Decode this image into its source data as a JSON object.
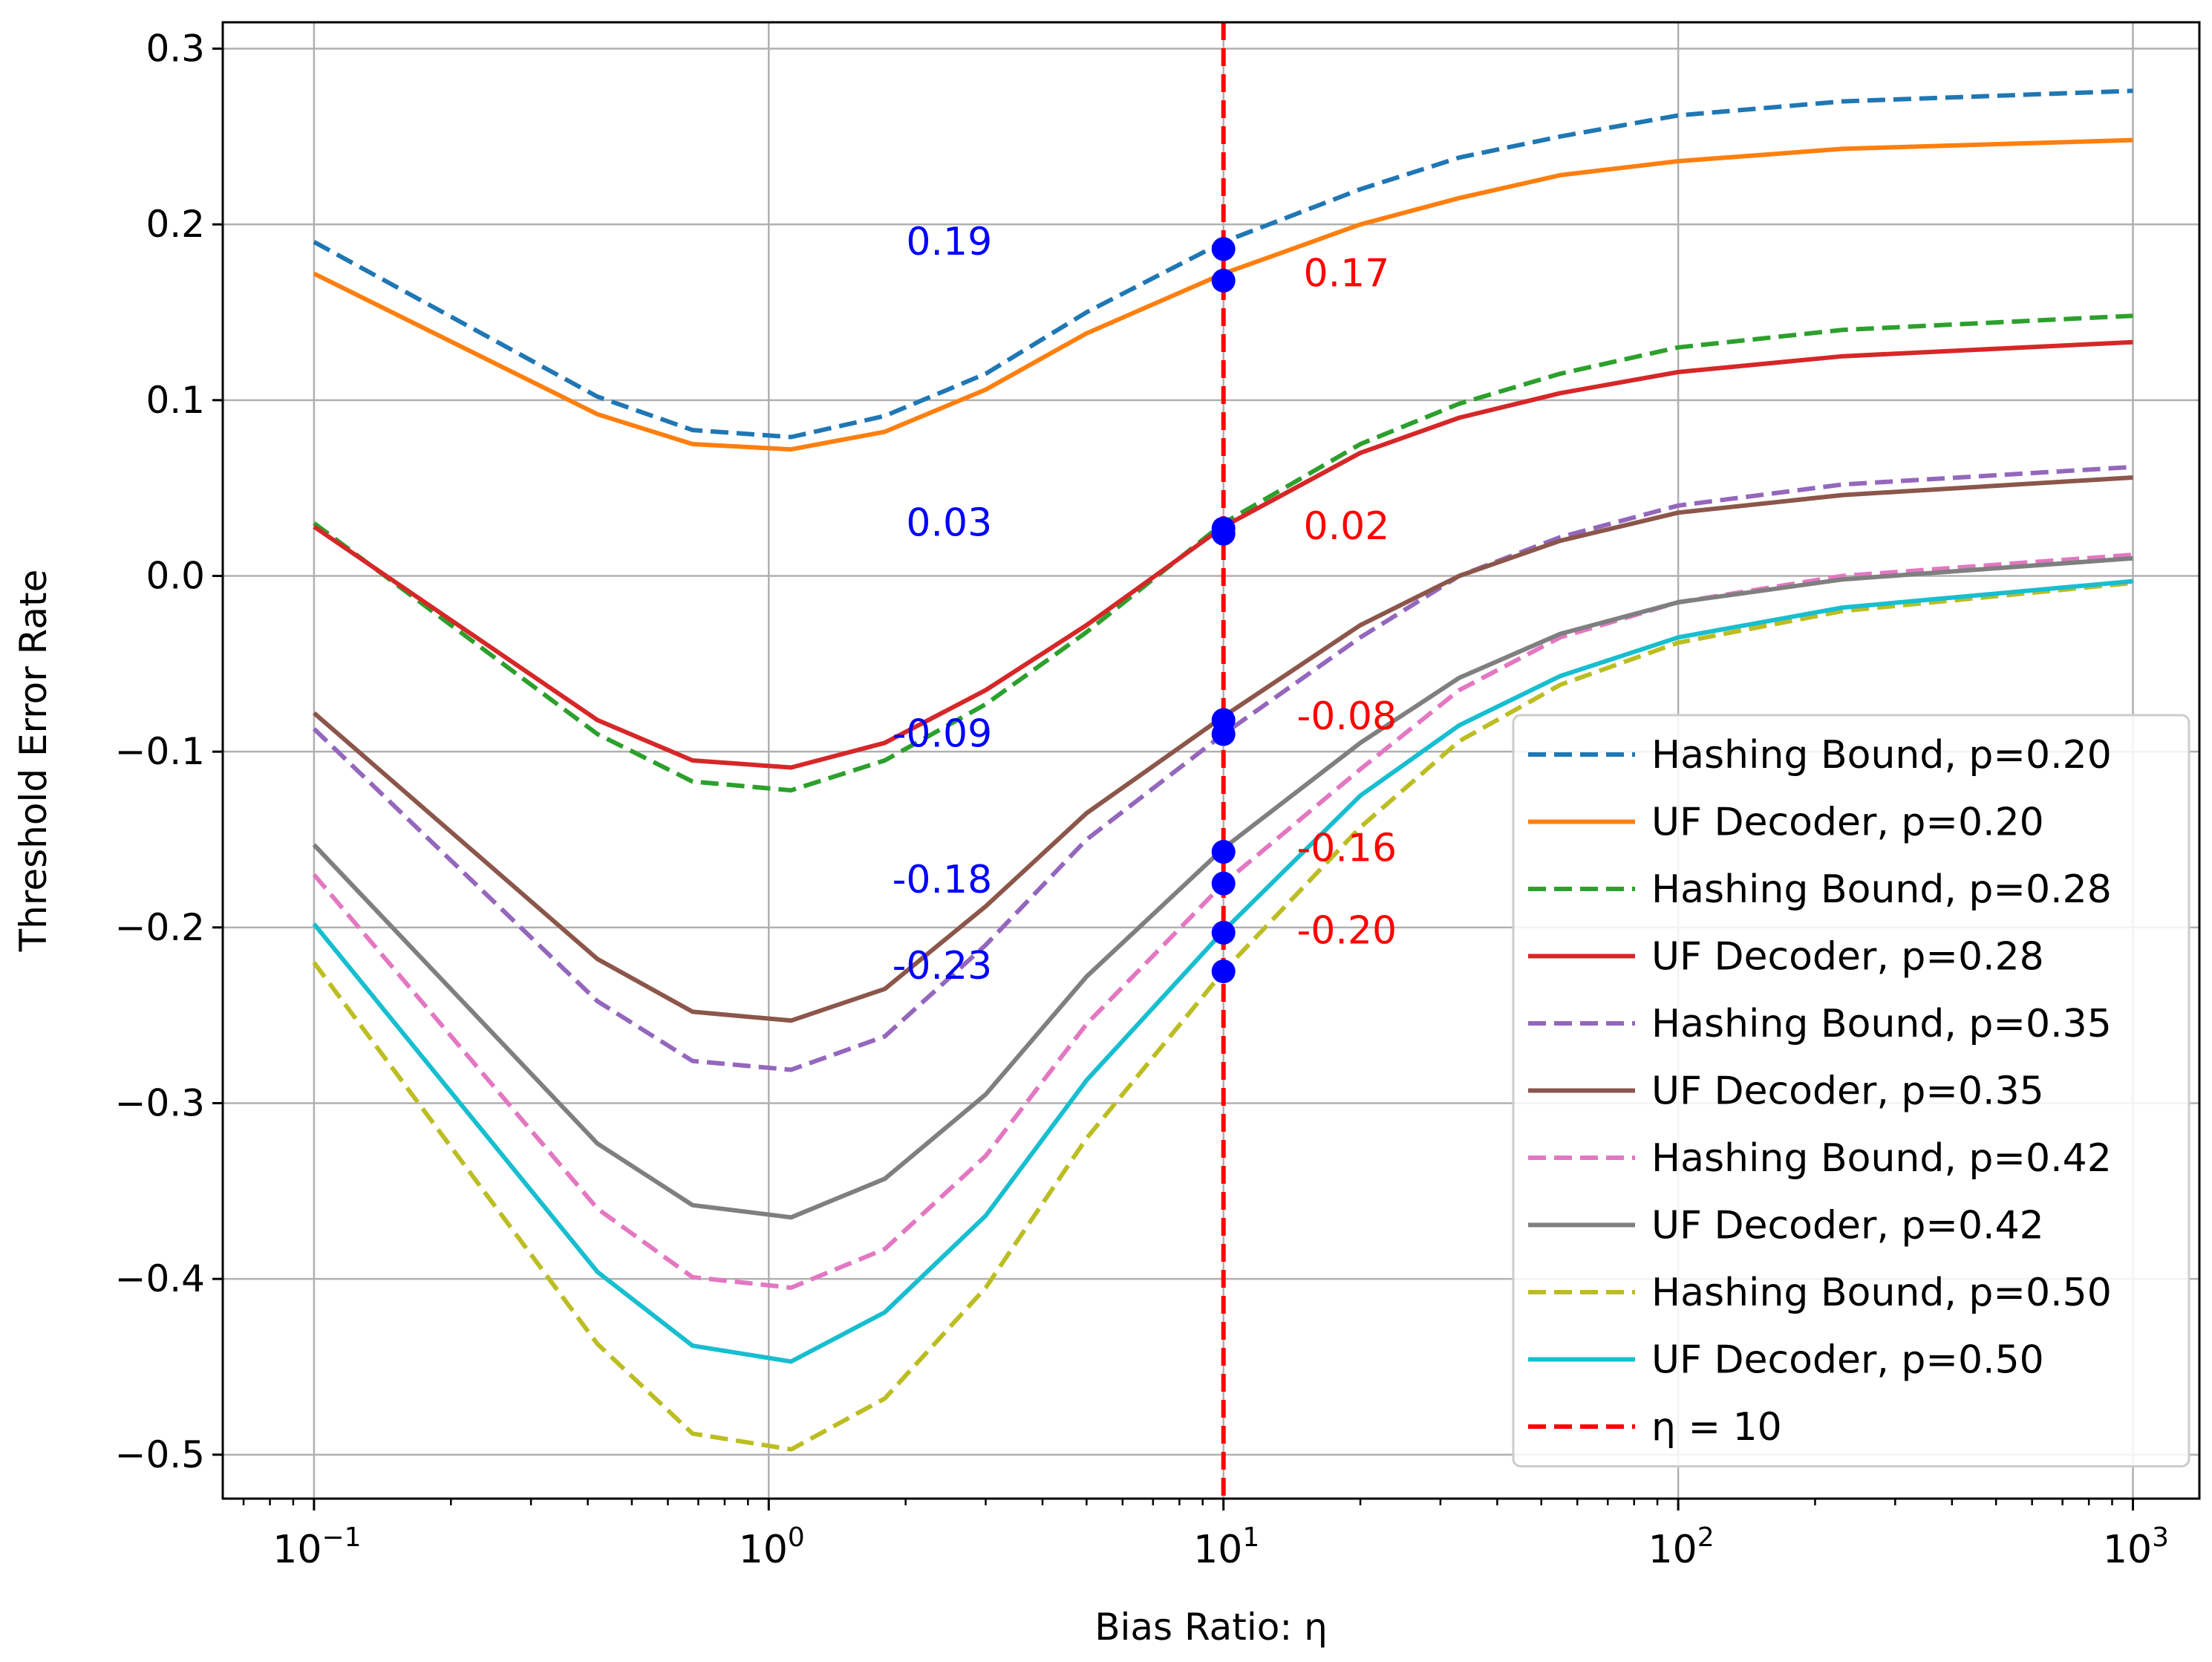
{
  "chart_data": {
    "type": "line",
    "xlabel": "Bias Ratio: η",
    "ylabel": "Threshold Error Rate",
    "xscale": "log",
    "xlim": [
      0.063,
      1400
    ],
    "ylim": [
      -0.525,
      0.315
    ],
    "grid": true,
    "legend_position": "lower-right",
    "x_ticks": [
      {
        "value": 0.1,
        "base": "10",
        "exp": "−1"
      },
      {
        "value": 1,
        "base": "10",
        "exp": "0"
      },
      {
        "value": 10,
        "base": "10",
        "exp": "1"
      },
      {
        "value": 100,
        "base": "10",
        "exp": "2"
      },
      {
        "value": 1000,
        "base": "10",
        "exp": "3"
      }
    ],
    "y_ticks": [
      {
        "value": 0.3,
        "label": "0.3"
      },
      {
        "value": 0.2,
        "label": "0.2"
      },
      {
        "value": 0.1,
        "label": "0.1"
      },
      {
        "value": 0.0,
        "label": "0.0"
      },
      {
        "value": -0.1,
        "label": "−0.1"
      },
      {
        "value": -0.2,
        "label": "−0.2"
      },
      {
        "value": -0.3,
        "label": "−0.3"
      },
      {
        "value": -0.4,
        "label": "−0.4"
      },
      {
        "value": -0.5,
        "label": "−0.5"
      }
    ],
    "x": [
      0.1,
      0.42,
      0.68,
      1.12,
      1.8,
      3.0,
      5.0,
      10,
      20,
      33,
      55,
      100,
      230,
      1000
    ],
    "series": [
      {
        "name": "Hashing Bound, p=0.20",
        "color": "#1f77b4",
        "dashed": true,
        "values": [
          0.19,
          0.102,
          0.083,
          0.079,
          0.091,
          0.115,
          0.15,
          0.19,
          0.22,
          0.238,
          0.25,
          0.262,
          0.27,
          0.276
        ]
      },
      {
        "name": "UF Decoder, p=0.20",
        "color": "#ff7f0e",
        "dashed": false,
        "values": [
          0.172,
          0.092,
          0.075,
          0.072,
          0.082,
          0.106,
          0.138,
          0.172,
          0.2,
          0.215,
          0.228,
          0.236,
          0.243,
          0.248
        ]
      },
      {
        "name": "Hashing Bound, p=0.28",
        "color": "#2ca02c",
        "dashed": true,
        "values": [
          0.03,
          -0.09,
          -0.117,
          -0.122,
          -0.105,
          -0.073,
          -0.032,
          0.03,
          0.075,
          0.098,
          0.115,
          0.13,
          0.14,
          0.148
        ]
      },
      {
        "name": "UF Decoder, p=0.28",
        "color": "#d62728",
        "dashed": false,
        "values": [
          0.028,
          -0.082,
          -0.105,
          -0.109,
          -0.095,
          -0.065,
          -0.028,
          0.028,
          0.07,
          0.09,
          0.104,
          0.116,
          0.125,
          0.133
        ]
      },
      {
        "name": "Hashing Bound, p=0.35",
        "color": "#9467bd",
        "dashed": true,
        "values": [
          -0.087,
          -0.242,
          -0.276,
          -0.281,
          -0.262,
          -0.21,
          -0.15,
          -0.09,
          -0.035,
          0.0,
          0.022,
          0.04,
          0.052,
          0.062
        ]
      },
      {
        "name": "UF Decoder, p=0.35",
        "color": "#8c564b",
        "dashed": false,
        "values": [
          -0.078,
          -0.218,
          -0.248,
          -0.253,
          -0.235,
          -0.188,
          -0.135,
          -0.08,
          -0.028,
          0.0,
          0.02,
          0.036,
          0.046,
          0.056
        ]
      },
      {
        "name": "Hashing Bound, p=0.42",
        "color": "#e377c2",
        "dashed": true,
        "values": [
          -0.17,
          -0.36,
          -0.399,
          -0.405,
          -0.383,
          -0.33,
          -0.255,
          -0.175,
          -0.11,
          -0.065,
          -0.035,
          -0.015,
          0.0,
          0.012
        ]
      },
      {
        "name": "UF Decoder, p=0.42",
        "color": "#7f7f7f",
        "dashed": false,
        "values": [
          -0.153,
          -0.323,
          -0.358,
          -0.365,
          -0.343,
          -0.295,
          -0.228,
          -0.155,
          -0.095,
          -0.058,
          -0.033,
          -0.015,
          -0.002,
          0.01
        ]
      },
      {
        "name": "Hashing Bound, p=0.50",
        "color": "#bcbd22",
        "dashed": true,
        "values": [
          -0.22,
          -0.437,
          -0.488,
          -0.497,
          -0.468,
          -0.405,
          -0.32,
          -0.225,
          -0.143,
          -0.094,
          -0.062,
          -0.038,
          -0.02,
          -0.004
        ]
      },
      {
        "name": "UF Decoder, p=0.50",
        "color": "#17becf",
        "dashed": false,
        "values": [
          -0.198,
          -0.396,
          -0.438,
          -0.447,
          -0.419,
          -0.364,
          -0.287,
          -0.202,
          -0.125,
          -0.085,
          -0.057,
          -0.035,
          -0.018,
          -0.003
        ]
      }
    ],
    "vline": {
      "name": "η = 10",
      "x": 10,
      "color": "#ff0000"
    },
    "markers": {
      "x": 10,
      "color": "#0000ff",
      "values": [
        0.186,
        0.168,
        0.027,
        0.024,
        -0.082,
        -0.09,
        -0.157,
        -0.175,
        -0.203,
        -0.225
      ]
    },
    "annotations": [
      {
        "text": "0.19",
        "color": "#0000ff",
        "x": 3.1,
        "y": 0.19,
        "anchor": "end"
      },
      {
        "text": "0.17",
        "color": "#ff0000",
        "x": 15,
        "y": 0.172,
        "anchor": "start"
      },
      {
        "text": "0.03",
        "color": "#0000ff",
        "x": 3.1,
        "y": 0.03,
        "anchor": "end"
      },
      {
        "text": "0.02",
        "color": "#ff0000",
        "x": 15,
        "y": 0.028,
        "anchor": "start"
      },
      {
        "text": "-0.09",
        "color": "#0000ff",
        "x": 3.1,
        "y": -0.09,
        "anchor": "end"
      },
      {
        "text": "-0.08",
        "color": "#ff0000",
        "x": 14.5,
        "y": -0.08,
        "anchor": "start"
      },
      {
        "text": "-0.18",
        "color": "#0000ff",
        "x": 3.1,
        "y": -0.173,
        "anchor": "end"
      },
      {
        "text": "-0.16",
        "color": "#ff0000",
        "x": 14.5,
        "y": -0.155,
        "anchor": "start"
      },
      {
        "text": "-0.23",
        "color": "#0000ff",
        "x": 3.1,
        "y": -0.222,
        "anchor": "end"
      },
      {
        "text": "-0.20",
        "color": "#ff0000",
        "x": 14.5,
        "y": -0.202,
        "anchor": "start"
      }
    ]
  }
}
